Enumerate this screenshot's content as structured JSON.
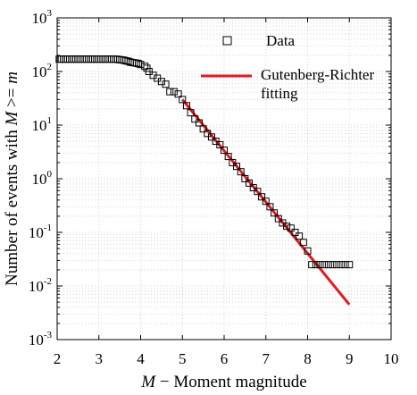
{
  "chart_data": {
    "type": "scatter",
    "xlabel_italic": "M",
    "xlabel_rest": " − Moment magnitude",
    "ylabel_prefix": "Number of events with ",
    "ylabel_italic1": "M",
    "ylabel_op": " >= ",
    "ylabel_italic2": "m",
    "xlim": [
      2,
      10
    ],
    "ylim": [
      0.001,
      1000
    ],
    "y_scale": "log",
    "grid": true,
    "legend_position": "top-right",
    "x_ticks": [
      "2",
      "3",
      "4",
      "5",
      "6",
      "7",
      "8",
      "9",
      "10"
    ],
    "y_ticks": [
      {
        "base": "10",
        "exp": "-3",
        "value": 0.001
      },
      {
        "base": "10",
        "exp": "-2",
        "value": 0.01
      },
      {
        "base": "10",
        "exp": "-1",
        "value": 0.1
      },
      {
        "base": "10",
        "exp": "0",
        "value": 1
      },
      {
        "base": "10",
        "exp": "1",
        "value": 10
      },
      {
        "base": "10",
        "exp": "2",
        "value": 100
      },
      {
        "base": "10",
        "exp": "3",
        "value": 1000
      }
    ],
    "series": [
      {
        "name": "Data",
        "marker": "square",
        "color": "#000000",
        "points": [
          [
            2.05,
            170
          ],
          [
            2.1,
            170
          ],
          [
            2.15,
            170
          ],
          [
            2.2,
            170
          ],
          [
            2.25,
            170
          ],
          [
            2.3,
            170
          ],
          [
            2.35,
            170
          ],
          [
            2.4,
            170
          ],
          [
            2.45,
            170
          ],
          [
            2.5,
            170
          ],
          [
            2.55,
            170
          ],
          [
            2.6,
            170
          ],
          [
            2.65,
            170
          ],
          [
            2.7,
            170
          ],
          [
            2.75,
            170
          ],
          [
            2.8,
            170
          ],
          [
            2.85,
            170
          ],
          [
            2.9,
            170
          ],
          [
            2.95,
            170
          ],
          [
            3.0,
            170
          ],
          [
            3.05,
            170
          ],
          [
            3.1,
            170
          ],
          [
            3.15,
            170
          ],
          [
            3.2,
            170
          ],
          [
            3.25,
            170
          ],
          [
            3.3,
            170
          ],
          [
            3.35,
            170
          ],
          [
            3.4,
            170
          ],
          [
            3.45,
            168
          ],
          [
            3.5,
            166
          ],
          [
            3.55,
            164
          ],
          [
            3.6,
            162
          ],
          [
            3.65,
            158
          ],
          [
            3.7,
            155
          ],
          [
            3.75,
            150
          ],
          [
            3.8,
            147
          ],
          [
            3.85,
            145
          ],
          [
            3.9,
            143
          ],
          [
            3.95,
            140
          ],
          [
            4.0,
            135
          ],
          [
            4.1,
            125
          ],
          [
            4.15,
            115
          ],
          [
            4.2,
            100
          ],
          [
            4.3,
            85
          ],
          [
            4.4,
            75
          ],
          [
            4.5,
            65
          ],
          [
            4.6,
            58
          ],
          [
            4.7,
            42
          ],
          [
            4.8,
            42
          ],
          [
            4.9,
            38
          ],
          [
            5.0,
            30
          ],
          [
            5.1,
            23
          ],
          [
            5.2,
            17
          ],
          [
            5.3,
            13
          ],
          [
            5.4,
            11
          ],
          [
            5.5,
            8.5
          ],
          [
            5.6,
            7
          ],
          [
            5.7,
            6
          ],
          [
            5.8,
            5
          ],
          [
            5.9,
            4.3
          ],
          [
            6.0,
            3.4
          ],
          [
            6.1,
            2.6
          ],
          [
            6.2,
            2.0
          ],
          [
            6.3,
            1.7
          ],
          [
            6.4,
            1.35
          ],
          [
            6.5,
            1.0
          ],
          [
            6.6,
            0.83
          ],
          [
            6.7,
            0.68
          ],
          [
            6.8,
            0.58
          ],
          [
            6.9,
            0.46
          ],
          [
            7.0,
            0.38
          ],
          [
            7.1,
            0.3
          ],
          [
            7.2,
            0.23
          ],
          [
            7.3,
            0.18
          ],
          [
            7.4,
            0.15
          ],
          [
            7.5,
            0.13
          ],
          [
            7.6,
            0.12
          ],
          [
            7.7,
            0.1
          ],
          [
            7.8,
            0.085
          ],
          [
            7.9,
            0.065
          ],
          [
            8.0,
            0.045
          ],
          [
            8.1,
            0.025
          ],
          [
            8.2,
            0.025
          ],
          [
            8.3,
            0.025
          ],
          [
            8.4,
            0.025
          ],
          [
            8.5,
            0.025
          ],
          [
            8.6,
            0.025
          ],
          [
            8.7,
            0.025
          ],
          [
            8.8,
            0.025
          ],
          [
            8.9,
            0.025
          ],
          [
            9.0,
            0.025
          ]
        ]
      },
      {
        "name": "Gutenberg-Richter fitting",
        "name_lines": [
          "Gutenberg-Richter",
          "fitting"
        ],
        "type": "line",
        "color": "#e41a1c",
        "points": [
          [
            5.0,
            30
          ],
          [
            9.0,
            0.0045
          ]
        ]
      }
    ]
  }
}
